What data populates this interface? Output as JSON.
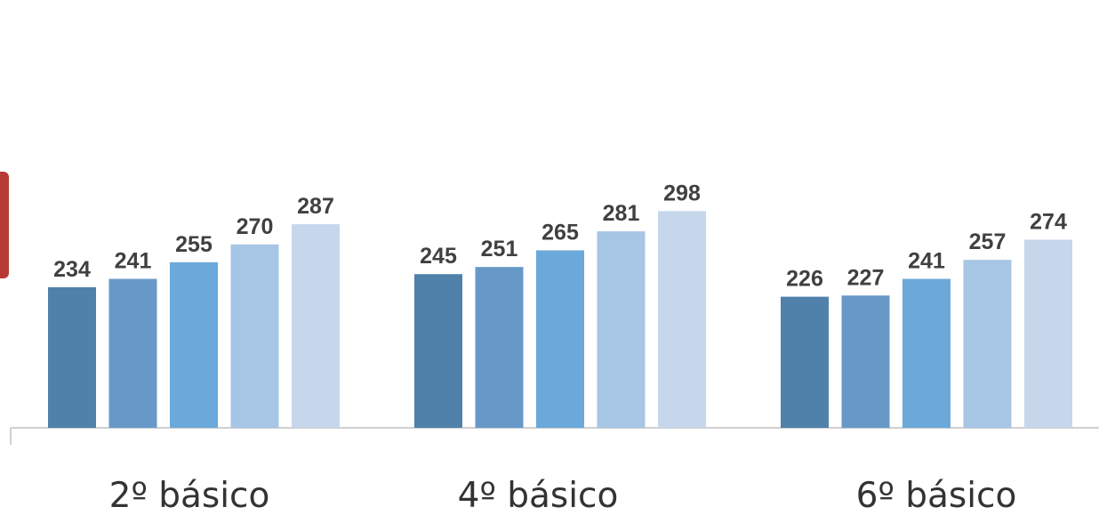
{
  "chart_data": {
    "type": "bar",
    "categories": [
      "2º básico",
      "4º básico",
      "6º básico"
    ],
    "series": [
      {
        "values": [
          234,
          245,
          226
        ]
      },
      {
        "values": [
          241,
          251,
          227
        ]
      },
      {
        "values": [
          255,
          265,
          241
        ]
      },
      {
        "values": [
          270,
          281,
          257
        ]
      },
      {
        "values": [
          287,
          298,
          274
        ]
      }
    ],
    "colors": [
      "#5081aa",
      "#6699c8",
      "#6aa9da",
      "#a7c5e4",
      "#c6d7ec"
    ],
    "accent_tab_color": "#b83a35",
    "ylim": [
      0,
      300
    ],
    "grid": false,
    "data_labels": true,
    "legend": "none"
  }
}
